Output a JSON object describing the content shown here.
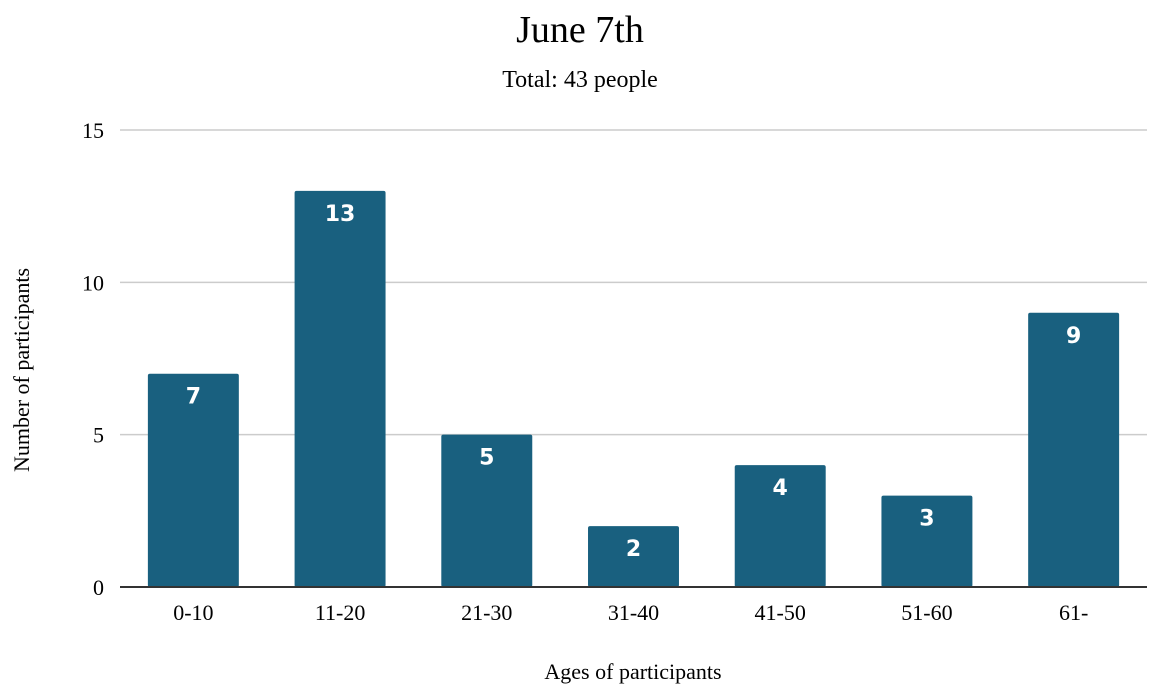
{
  "chart_data": {
    "type": "bar",
    "title": "June 7th",
    "subtitle": "Total: 43 people",
    "xlabel": "Ages of participants",
    "ylabel": "Number of participants",
    "categories": [
      "0-10",
      "11-20",
      "21-30",
      "31-40",
      "41-50",
      "51-60",
      "61-"
    ],
    "values": [
      7,
      13,
      5,
      2,
      4,
      3,
      9
    ],
    "ylim": [
      0,
      15
    ],
    "yticks": [
      0,
      5,
      10,
      15
    ],
    "grid": true,
    "data_labels": true,
    "colors": {
      "bar": "#19607F",
      "grid": "#CCCCCC",
      "axis": "#333333",
      "label": "#FFFFFF"
    }
  }
}
